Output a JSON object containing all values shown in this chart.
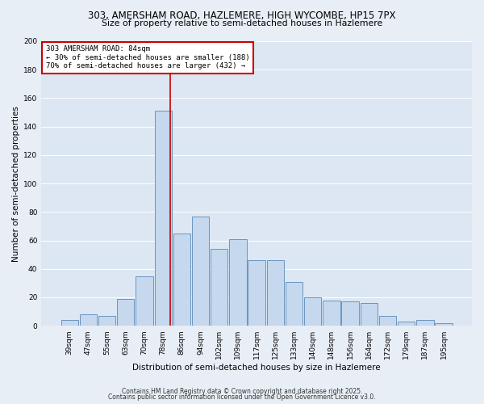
{
  "title_line1": "303, AMERSHAM ROAD, HAZLEMERE, HIGH WYCOMBE, HP15 7PX",
  "title_line2": "Size of property relative to semi-detached houses in Hazlemere",
  "xlabel": "Distribution of semi-detached houses by size in Hazlemere",
  "ylabel": "Number of semi-detached properties",
  "bin_labels": [
    "39sqm",
    "47sqm",
    "55sqm",
    "63sqm",
    "70sqm",
    "78sqm",
    "86sqm",
    "94sqm",
    "102sqm",
    "109sqm",
    "117sqm",
    "125sqm",
    "133sqm",
    "140sqm",
    "148sqm",
    "156sqm",
    "164sqm",
    "172sqm",
    "179sqm",
    "187sqm",
    "195sqm"
  ],
  "bar_heights": [
    4,
    8,
    7,
    19,
    35,
    151,
    65,
    77,
    54,
    61,
    46,
    46,
    31,
    20,
    18,
    17,
    16,
    7,
    3,
    4,
    2
  ],
  "bar_color": "#c5d8ed",
  "bar_edge_color": "#5a8ab8",
  "vline_x_index": 5,
  "vline_color": "#cc0000",
  "annotation_title": "303 AMERSHAM ROAD: 84sqm",
  "annotation_line2": "← 30% of semi-detached houses are smaller (188)",
  "annotation_line3": "70% of semi-detached houses are larger (432) →",
  "annotation_box_color": "#ffffff",
  "annotation_box_edge": "#cc0000",
  "ylim": [
    0,
    200
  ],
  "yticks": [
    0,
    20,
    40,
    60,
    80,
    100,
    120,
    140,
    160,
    180,
    200
  ],
  "footer1": "Contains HM Land Registry data © Crown copyright and database right 2025.",
  "footer2": "Contains public sector information licensed under the Open Government Licence v3.0.",
  "bg_color": "#e8eef5",
  "plot_bg_color": "#dce7f3",
  "grid_color": "#ffffff",
  "title_fontsize": 8.5,
  "subtitle_fontsize": 7.8,
  "tick_fontsize": 6.5,
  "ylabel_fontsize": 7.5,
  "xlabel_fontsize": 7.5,
  "footer_fontsize": 5.5
}
